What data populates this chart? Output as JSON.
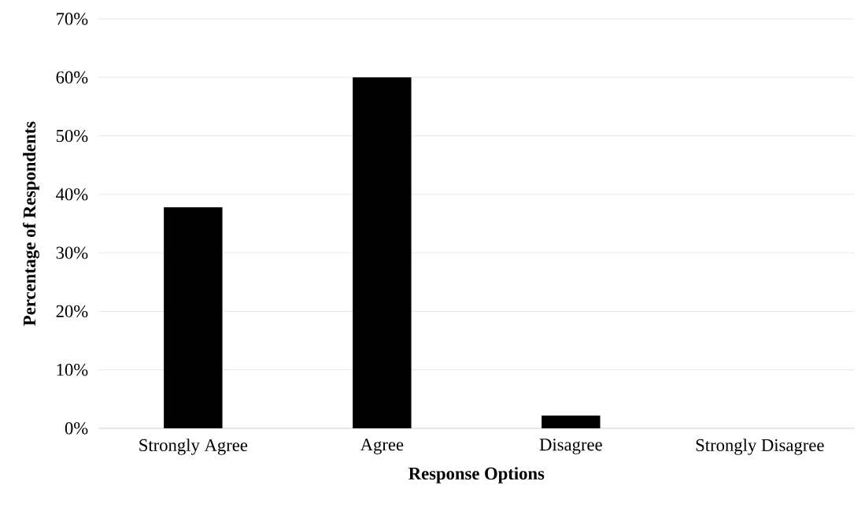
{
  "chart_data": {
    "type": "bar",
    "xlabel": "Response Options",
    "ylabel": "Percentage of Respondents",
    "categories": [
      "Strongly Agree",
      "Agree",
      "Disagree",
      "Strongly Disagree"
    ],
    "values": [
      37.8,
      60,
      2.2,
      0
    ],
    "color": "#000000",
    "ylim": [
      0,
      70
    ],
    "yticks": [
      {
        "value": 0,
        "label": "0%"
      },
      {
        "value": 10,
        "label": "10%"
      },
      {
        "value": 20,
        "label": "20%"
      },
      {
        "value": 30,
        "label": "30%"
      },
      {
        "value": 40,
        "label": "40%"
      },
      {
        "value": 50,
        "label": "50%"
      },
      {
        "value": 60,
        "label": "60%"
      },
      {
        "value": 70,
        "label": "70%"
      }
    ],
    "grid": "y"
  }
}
